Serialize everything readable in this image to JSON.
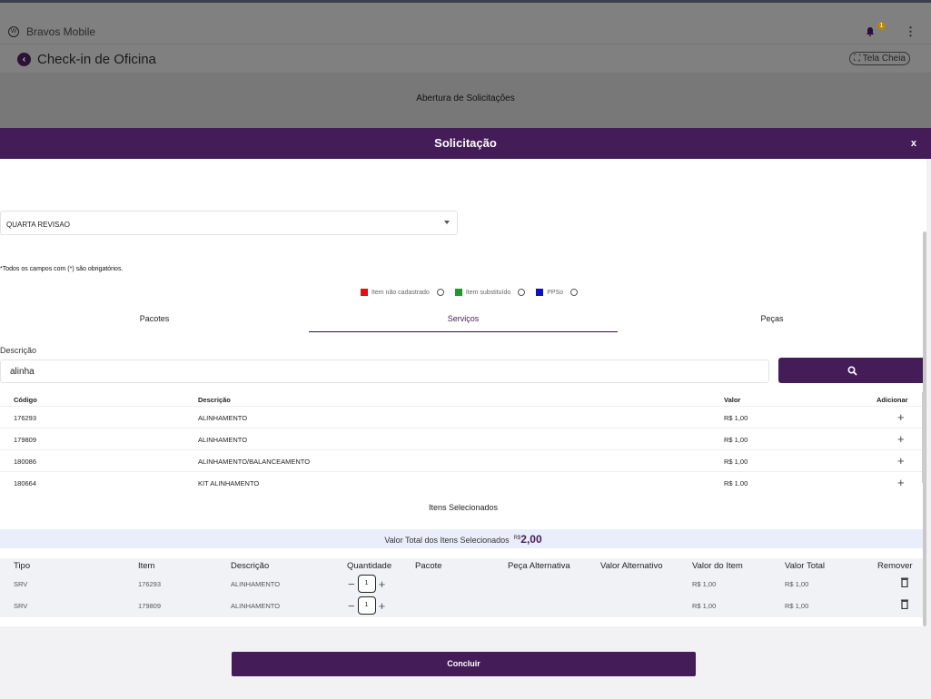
{
  "app": {
    "name": "Bravos Mobile",
    "notifications": "1",
    "page_title": "Check-in de Oficina",
    "fullscreen": "Tela Cheia",
    "section": "Abertura de Solicitações"
  },
  "modal": {
    "title": "Solicitação",
    "close": "x",
    "select_value": "QUARTA REVISAO",
    "required_note": "*Todos os campos com (*) são obrigatórios.",
    "legend": [
      {
        "label": "Item não cadastrado",
        "color": "#e01010"
      },
      {
        "label": "Item substituído",
        "color": "#1e9a2a"
      },
      {
        "label": "PPSo",
        "color": "#1010c0"
      }
    ],
    "tabs": [
      "Pacotes",
      "Serviços",
      "Peças"
    ],
    "description_label": "Descrição",
    "search_value": "alinha",
    "results": {
      "headers": [
        "Código",
        "Descrição",
        "Valor",
        "Adicionar"
      ],
      "rows": [
        [
          "176293",
          "ALINHAMENTO",
          "R$ 1,00"
        ],
        [
          "179809",
          "ALINHAMENTO",
          "R$ 1,00"
        ],
        [
          "180086",
          "ALINHAMENTO/BALANCEAMENTO",
          "R$ 1,00"
        ],
        [
          "180664",
          "KIT ALINHAMENTO",
          "R$ 1,00"
        ]
      ]
    },
    "selected_label": "Itens Selecionados",
    "total_label": "Valor Total dos Itens Selecionados",
    "total_currency": "R$",
    "total_value": "2,00",
    "selected": {
      "headers": [
        "Tipo",
        "Item",
        "Descrição",
        "Quantidade",
        "Pacote",
        "Peça Alternativa",
        "Valor Alternativo",
        "Valor do Item",
        "Valor Total",
        "Remover"
      ],
      "rows": [
        {
          "tipo": "SRV",
          "item": "176293",
          "desc": "ALINHAMENTO",
          "qty": "1",
          "valor": "R$ 1,00",
          "total": "R$ 1,00"
        },
        {
          "tipo": "SRV",
          "item": "179809",
          "desc": "ALINHAMENTO",
          "qty": "1",
          "valor": "R$ 1,00",
          "total": "R$ 1,00"
        }
      ]
    }
  },
  "footer": {
    "conclude": "Concluir"
  }
}
